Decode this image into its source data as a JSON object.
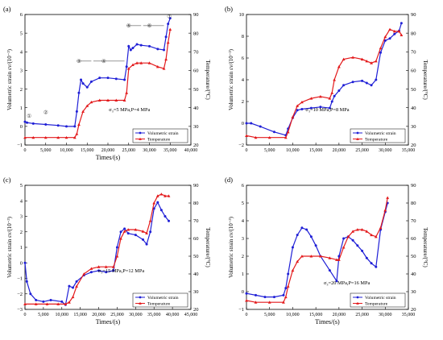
{
  "figure": {
    "colors": {
      "volumetric": "#1f1fd6",
      "temperature": "#e31a1c",
      "frame": "#000000"
    }
  },
  "chart_data": [
    {
      "panel": "(a)",
      "type": "line",
      "annotation": "σ₃=5 MPa,P=4 MPa",
      "xlabel": "Times/(s)",
      "ylabel_left": "Volumetric strain εv/(10⁻³)",
      "ylabel_right": "Temperature/(°C)",
      "xlim": [
        0,
        40000
      ],
      "ylim_left": [
        -1,
        6
      ],
      "ylim_right": [
        20,
        90
      ],
      "x_ticks": [
        0,
        5000,
        10000,
        15000,
        20000,
        25000,
        30000,
        35000,
        40000
      ],
      "x_tick_labels": [
        "0",
        "5,000",
        "10,000",
        "15,000",
        "20,000",
        "25,000",
        "30,000",
        "35,000",
        "40,000"
      ],
      "y_left_ticks": [
        -1,
        0,
        1,
        2,
        3,
        4,
        5,
        6
      ],
      "y_right_ticks": [
        20,
        30,
        40,
        50,
        60,
        70,
        80,
        90
      ],
      "legend": [
        "Volumetric strain",
        "Temperature"
      ],
      "stage_labels": [
        "①",
        "②",
        "③",
        "④",
        "⑤",
        "⑥",
        "⑦"
      ],
      "series": [
        {
          "name": "Volumetric strain",
          "axis": "left",
          "x": [
            0,
            500,
            2000,
            5000,
            8000,
            10000,
            12000,
            12500,
            13000,
            13500,
            14000,
            15000,
            16000,
            18000,
            20000,
            22000,
            24000,
            24500,
            25000,
            25500,
            26000,
            27000,
            28000,
            30000,
            32000,
            33500,
            34000,
            34500,
            35000
          ],
          "y": [
            0.25,
            0.2,
            0.15,
            0.1,
            0.05,
            0.0,
            0.0,
            0.8,
            1.8,
            2.5,
            2.3,
            2.1,
            2.4,
            2.6,
            2.6,
            2.55,
            2.5,
            3.2,
            4.3,
            4.1,
            4.2,
            4.4,
            4.35,
            4.3,
            4.15,
            4.1,
            4.8,
            5.5,
            5.8
          ]
        },
        {
          "name": "Temperature",
          "axis": "right",
          "x": [
            0,
            2000,
            5000,
            8000,
            10000,
            12000,
            12500,
            13000,
            14000,
            15000,
            16000,
            18000,
            20000,
            22000,
            24000,
            24500,
            25000,
            26000,
            27000,
            28000,
            30000,
            32000,
            33500,
            34000,
            34500,
            35000
          ],
          "y": [
            24,
            24,
            24,
            24,
            24,
            24,
            26,
            31,
            38,
            41,
            43,
            44,
            44,
            44,
            44,
            48,
            61,
            63,
            64,
            64,
            64,
            62,
            61,
            66,
            75,
            82
          ]
        }
      ]
    },
    {
      "panel": "(b)",
      "type": "line",
      "annotation": "σ₃=10 MPa,P=8 MPa",
      "xlabel": "",
      "ylabel_left": "Volumetric strain εv/(10⁻³)",
      "ylabel_right": "Temperature/(°C)",
      "xlim": [
        0,
        35000
      ],
      "ylim_left": [
        -2,
        10
      ],
      "ylim_right": [
        20,
        90
      ],
      "x_ticks": [
        0,
        5000,
        10000,
        15000,
        20000,
        25000,
        30000,
        35000
      ],
      "x_tick_labels": [
        "0",
        "5,000",
        "10,000",
        "15,000",
        "20,000",
        "25,000",
        "30,000",
        "35,000"
      ],
      "y_left_ticks": [
        -2,
        0,
        2,
        4,
        6,
        8,
        10
      ],
      "y_right_ticks": [
        20,
        30,
        40,
        50,
        60,
        70,
        80,
        90
      ],
      "legend": [
        "Volumetric strain",
        "Temperature"
      ],
      "series": [
        {
          "name": "Volumetric strain",
          "axis": "left",
          "x": [
            0,
            1000,
            3000,
            6000,
            8500,
            9000,
            10000,
            11000,
            12000,
            14000,
            16000,
            18000,
            18500,
            19000,
            20000,
            21000,
            23000,
            25000,
            26000,
            27000,
            28000,
            29000,
            30000,
            31000,
            32000,
            33000,
            33500
          ],
          "y": [
            0,
            0,
            -0.3,
            -0.8,
            -1.1,
            -0.5,
            0.5,
            1.2,
            1.3,
            1.4,
            1.5,
            1.4,
            2.0,
            2.5,
            3.0,
            3.5,
            3.8,
            3.9,
            3.7,
            3.5,
            4.0,
            6.5,
            7.6,
            7.8,
            8.2,
            8.5,
            9.2
          ]
        },
        {
          "name": "Temperature",
          "axis": "right",
          "x": [
            0,
            2000,
            5000,
            8500,
            9000,
            10000,
            11000,
            12000,
            14000,
            16000,
            18000,
            18500,
            19000,
            20000,
            21000,
            23000,
            25000,
            26000,
            27000,
            28000,
            29000,
            30000,
            31000,
            32000,
            33000,
            33500
          ],
          "y": [
            25,
            24,
            24,
            24,
            27,
            35,
            41,
            43,
            45,
            46,
            45,
            48,
            55,
            62,
            66,
            67,
            66,
            65,
            64,
            65,
            72,
            78,
            82,
            81,
            81,
            79
          ]
        }
      ]
    },
    {
      "panel": "(c)",
      "type": "line",
      "annotation": "σ₃=15 MPa,P=12 MPa",
      "xlabel": "Times/(s)",
      "ylabel_left": "Volumetric strain εv/(10⁻³)",
      "ylabel_right": "Temperature/(°C)",
      "xlim": [
        0,
        45000
      ],
      "ylim_left": [
        -3,
        5
      ],
      "ylim_right": [
        20,
        90
      ],
      "x_ticks": [
        0,
        5000,
        10000,
        15000,
        20000,
        25000,
        30000,
        35000,
        40000,
        45000
      ],
      "x_tick_labels": [
        "0",
        "5,000",
        "10,000",
        "15,000",
        "20,000",
        "25,000",
        "30,000",
        "35,000",
        "40,000",
        "45,000"
      ],
      "y_left_ticks": [
        -3,
        -2,
        -1,
        0,
        1,
        2,
        3,
        4,
        5
      ],
      "y_right_ticks": [
        20,
        30,
        40,
        50,
        60,
        70,
        80,
        90
      ],
      "legend": [
        "Volumetric strain",
        "Temperature"
      ],
      "series": [
        {
          "name": "Volumetric strain",
          "axis": "left",
          "x": [
            0,
            500,
            1500,
            3000,
            5000,
            7000,
            10000,
            11000,
            12000,
            13000,
            14000,
            16000,
            18000,
            20000,
            22000,
            24000,
            25000,
            26000,
            27000,
            28000,
            30000,
            32000,
            33000,
            34000,
            35000,
            36000,
            37000,
            38000,
            39000
          ],
          "y": [
            0,
            -1.2,
            -2.0,
            -2.4,
            -2.5,
            -2.4,
            -2.5,
            -2.7,
            -1.5,
            -1.6,
            -1.2,
            -0.8,
            -0.6,
            -0.5,
            -0.6,
            -0.5,
            1.0,
            2.0,
            2.2,
            1.9,
            1.8,
            1.5,
            1.2,
            2.0,
            3.5,
            3.9,
            3.4,
            3.0,
            2.7
          ]
        },
        {
          "name": "Temperature",
          "axis": "right",
          "x": [
            0,
            3000,
            6000,
            9000,
            11000,
            12000,
            13000,
            14000,
            16000,
            18000,
            20000,
            22000,
            24000,
            25000,
            26000,
            27000,
            28000,
            30000,
            32000,
            33000,
            34000,
            35000,
            36000,
            37000,
            38000,
            39000
          ],
          "y": [
            23,
            23,
            23,
            23,
            23,
            24,
            27,
            33,
            40,
            43,
            44,
            44,
            44,
            50,
            60,
            64,
            65,
            65,
            64,
            63,
            70,
            80,
            84,
            85,
            84,
            84
          ]
        }
      ]
    },
    {
      "panel": "(d)",
      "type": "line",
      "annotation": "σ₃=20 MPa,P=16 MPa",
      "xlabel": "Times/(s)",
      "ylabel_left": "Volumetric strain εv/(10⁻³)",
      "ylabel_right": "Temperature/(°C)",
      "xlim": [
        0,
        35000
      ],
      "ylim_left": [
        -1,
        6
      ],
      "ylim_right": [
        20,
        90
      ],
      "x_ticks": [
        0,
        5000,
        10000,
        15000,
        20000,
        25000,
        30000,
        35000
      ],
      "x_tick_labels": [
        "0",
        "5,000",
        "10,000",
        "15,000",
        "20,000",
        "25,000",
        "30,000",
        "35,000"
      ],
      "y_left_ticks": [
        -1,
        0,
        1,
        2,
        3,
        4,
        5,
        6
      ],
      "y_right_ticks": [
        20,
        30,
        40,
        50,
        60,
        70,
        80,
        90
      ],
      "legend": [
        "Volumetric strain",
        "Temperature"
      ],
      "series": [
        {
          "name": "Volumetric strain",
          "axis": "left",
          "x": [
            0,
            2000,
            4000,
            6000,
            8000,
            8500,
            9000,
            10000,
            11000,
            12000,
            13000,
            14000,
            15000,
            16000,
            18000,
            19500,
            20000,
            21000,
            22000,
            23000,
            24000,
            25000,
            26000,
            27000,
            28000,
            29000,
            30000,
            30500
          ],
          "y": [
            -0.1,
            -0.2,
            -0.3,
            -0.3,
            -0.2,
            0.2,
            1.0,
            2.5,
            3.2,
            3.6,
            3.5,
            3.1,
            2.6,
            2.0,
            1.2,
            0.6,
            2.0,
            3.0,
            3.1,
            2.9,
            2.6,
            2.3,
            1.9,
            1.6,
            1.4,
            3.5,
            4.5,
            5.0
          ]
        },
        {
          "name": "Temperature",
          "axis": "right",
          "x": [
            0,
            2000,
            5000,
            8000,
            8500,
            9000,
            10000,
            11000,
            12000,
            14000,
            16000,
            18000,
            19500,
            20000,
            21000,
            22000,
            23000,
            24000,
            25000,
            26000,
            27000,
            28000,
            29000,
            30000,
            30500
          ],
          "y": [
            25,
            24,
            24,
            24,
            27,
            33,
            42,
            47,
            50,
            50,
            50,
            49,
            48,
            48,
            55,
            61,
            64,
            65,
            65,
            64,
            62,
            61,
            66,
            76,
            83
          ]
        }
      ]
    }
  ]
}
